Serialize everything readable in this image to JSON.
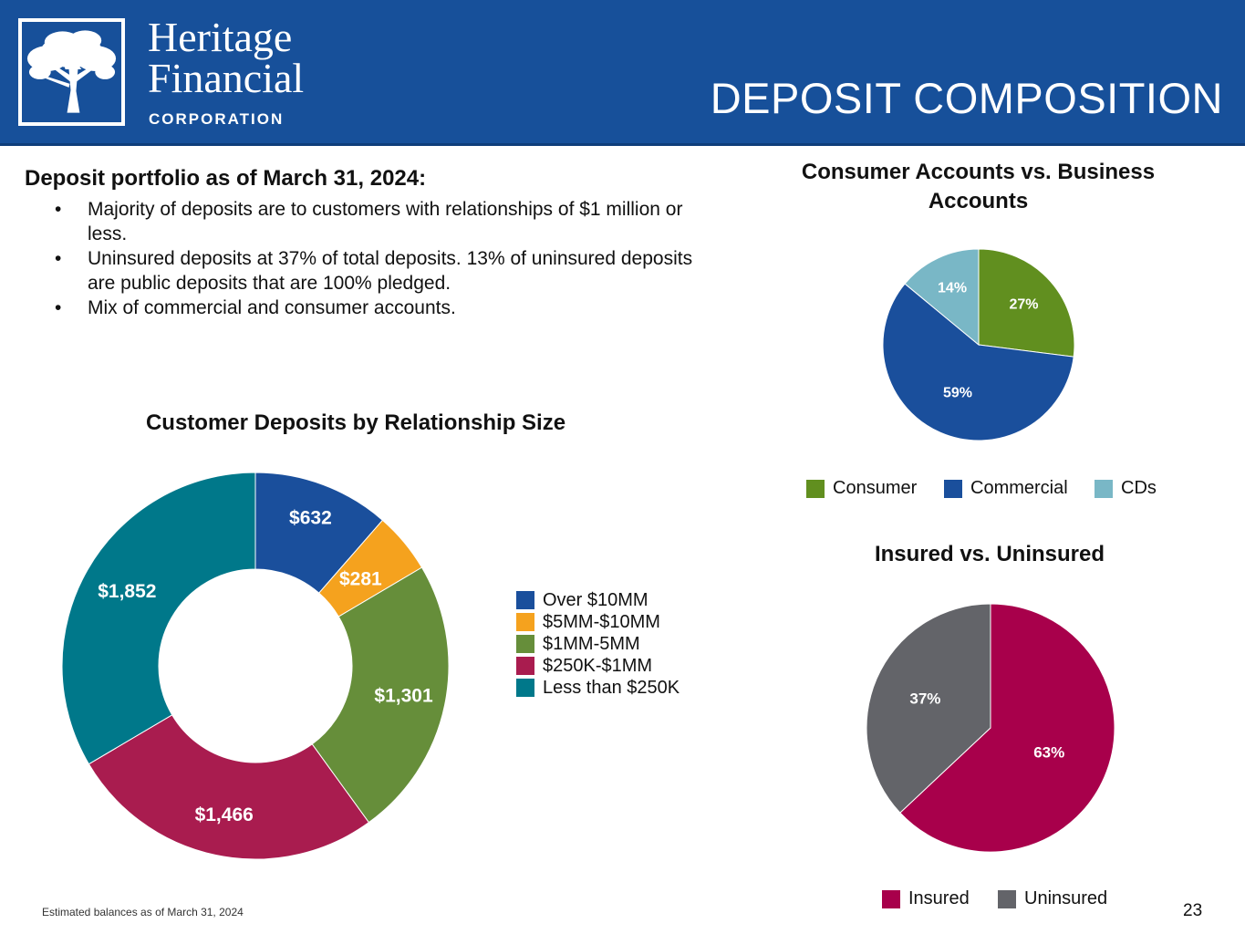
{
  "header": {
    "logo_line1": "Heritage",
    "logo_line2": "Financial",
    "logo_line3": "CORPORATION",
    "logo_icon": "oak-tree-logo-icon",
    "title": "DEPOSIT COMPOSITION",
    "background_color": "#17509a"
  },
  "intro": {
    "heading": "Deposit portfolio as of March 31, 2024:",
    "bullet_char": "•",
    "bullets": [
      "Majority of deposits are to customers with relationships of $1 million or less.",
      "Uninsured deposits at 37% of total deposits. 13% of uninsured deposits are public deposits that are 100% pledged.",
      "Mix of commercial and consumer accounts."
    ]
  },
  "chart_data": [
    {
      "type": "pie",
      "variant": "donut",
      "title": "Customer Deposits by Relationship Size",
      "categories": [
        "Over $10MM",
        "$5MM-$10MM",
        "$1MM-5MM",
        "$250K-$1MM",
        "Less than $250K"
      ],
      "values": [
        632,
        281,
        1301,
        1466,
        1852
      ],
      "data_labels": [
        "$632",
        "$281",
        "$1,301",
        "$1,466",
        "$1,852"
      ],
      "colors": [
        "#1a4f9c",
        "#f5a21e",
        "#668e3a",
        "#a91c4f",
        "#00788a"
      ],
      "legend_position": "right"
    },
    {
      "type": "pie",
      "title": "Consumer Accounts vs. Business Accounts",
      "categories": [
        "Consumer",
        "Commercial",
        "CDs"
      ],
      "values": [
        27,
        59,
        14
      ],
      "data_labels": [
        "27%",
        "59%",
        "14%"
      ],
      "colors": [
        "#618f1f",
        "#1a4f9c",
        "#79b7c6"
      ],
      "legend_position": "bottom"
    },
    {
      "type": "pie",
      "title": "Insured vs. Uninsured",
      "categories": [
        "Insured",
        "Uninsured"
      ],
      "values": [
        63,
        37
      ],
      "data_labels": [
        "63%",
        "37%"
      ],
      "colors": [
        "#a8004b",
        "#636469"
      ],
      "legend_position": "bottom"
    }
  ],
  "footer": {
    "footnote": "Estimated balances as of March 31, 2024",
    "page_number": "23"
  }
}
